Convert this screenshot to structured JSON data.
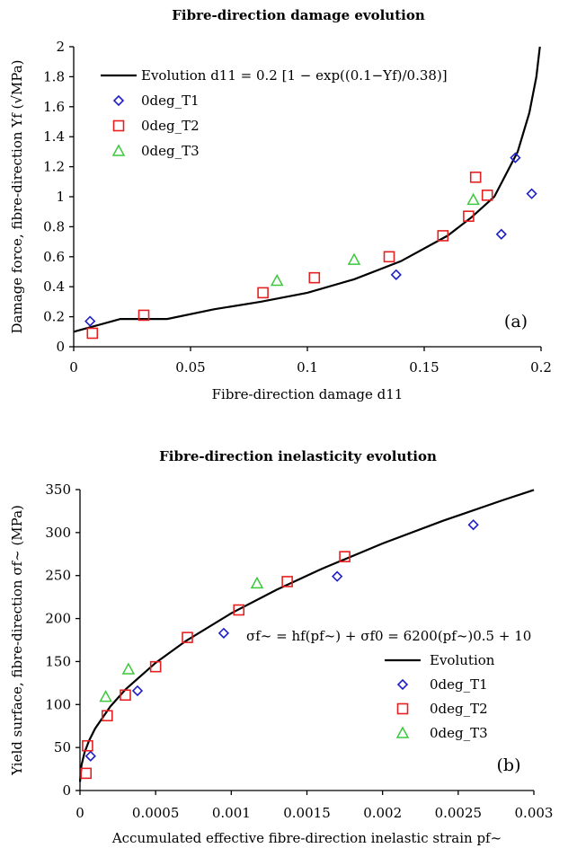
{
  "chart_data": [
    {
      "type": "scatter",
      "title": "Fibre-direction damage evolution",
      "panel_label": "(a)",
      "xlabel": "Fibre-direction damage d11",
      "ylabel": "Damage force, fibre-direction  Yf (√MPa)",
      "xlim": [
        0,
        0.2
      ],
      "ylim": [
        0,
        2
      ],
      "x_ticks": [
        "0",
        "0.05",
        "0.1",
        "0.15",
        "0.2"
      ],
      "y_ticks": [
        "0",
        "0.2",
        "0.4",
        "0.6",
        "0.8",
        "1",
        "1.2",
        "1.4",
        "1.6",
        "1.8",
        "2"
      ],
      "grid": false,
      "legend_position": "top-left",
      "evolution_label": "Evolution  d11 = 0.2 [1 − exp((0.1−Yf)/0.38)]",
      "series": [
        {
          "name": "Evolution",
          "kind": "line",
          "color": "#000000",
          "x": [
            0.0,
            0.02,
            0.04,
            0.06,
            0.08,
            0.1,
            0.12,
            0.14,
            0.16,
            0.17,
            0.18,
            0.19,
            0.195,
            0.198,
            0.1995
          ],
          "y": [
            0.1,
            0.185,
            0.185,
            0.25,
            0.3,
            0.36,
            0.45,
            0.57,
            0.74,
            0.86,
            1.0,
            1.3,
            1.56,
            1.8,
            2.0
          ]
        },
        {
          "name": "0deg_T1",
          "marker": "diamond",
          "color": "#1f1fc8",
          "x": [
            0.007,
            0.138,
            0.183,
            0.189,
            0.196
          ],
          "y": [
            0.17,
            0.48,
            0.75,
            1.26,
            1.02
          ]
        },
        {
          "name": "0deg_T2",
          "marker": "square",
          "color": "#e62020",
          "x": [
            0.008,
            0.03,
            0.081,
            0.103,
            0.135,
            0.158,
            0.169,
            0.172,
            0.177
          ],
          "y": [
            0.09,
            0.21,
            0.36,
            0.46,
            0.6,
            0.74,
            0.87,
            1.13,
            1.01
          ]
        },
        {
          "name": "0deg_T3",
          "marker": "triangle",
          "color": "#3cc83c",
          "x": [
            0.087,
            0.12,
            0.171
          ],
          "y": [
            0.44,
            0.58,
            0.98
          ]
        }
      ]
    },
    {
      "type": "scatter",
      "title": "Fibre-direction inelasticity evolution",
      "panel_label": "(b)",
      "xlabel": "Accumulated effective fibre-direction inelastic strain pf~",
      "ylabel": "Yield surface, fibre-direction  σf~ (MPa)",
      "xlim": [
        0,
        0.003
      ],
      "ylim": [
        0,
        350
      ],
      "x_ticks": [
        "0",
        "0.0005",
        "0.001",
        "0.0015",
        "0.002",
        "0.0025",
        "0.003"
      ],
      "y_ticks": [
        "0",
        "50",
        "100",
        "150",
        "200",
        "250",
        "300",
        "350"
      ],
      "grid": false,
      "legend_position": "right",
      "equation": "σf~ = hf(pf~) + σf0 = 6200(pf~)0.5 + 10",
      "series": [
        {
          "name": "Evolution",
          "kind": "line",
          "color": "#000000",
          "x": [
            0.0,
            1e-05,
            3e-05,
            6e-05,
            0.0001,
            0.0002,
            0.0003,
            0.0005,
            0.0007,
            0.001,
            0.0013,
            0.0016,
            0.002,
            0.0024,
            0.0028,
            0.003
          ],
          "y": [
            10,
            29.6,
            44.0,
            58.0,
            72.0,
            97.7,
            117.4,
            148.6,
            174.0,
            206.1,
            233.5,
            258.0,
            287.3,
            313.7,
            338.0,
            349.6
          ]
        },
        {
          "name": "0deg_T1",
          "marker": "diamond",
          "color": "#1f1fc8",
          "x": [
            7e-05,
            0.00038,
            0.00095,
            0.0017,
            0.0026
          ],
          "y": [
            40,
            116,
            183,
            249,
            309
          ]
        },
        {
          "name": "0deg_T2",
          "marker": "square",
          "color": "#e62020",
          "x": [
            4e-05,
            5e-05,
            0.00018,
            0.0003,
            0.0005,
            0.00071,
            0.00105,
            0.00137,
            0.00175
          ],
          "y": [
            20,
            52,
            87,
            111,
            144,
            178,
            210,
            243,
            272
          ]
        },
        {
          "name": "0deg_T3",
          "marker": "triangle",
          "color": "#3cc83c",
          "x": [
            0.00017,
            0.00032,
            0.00117
          ],
          "y": [
            109,
            141,
            241
          ]
        }
      ]
    }
  ]
}
